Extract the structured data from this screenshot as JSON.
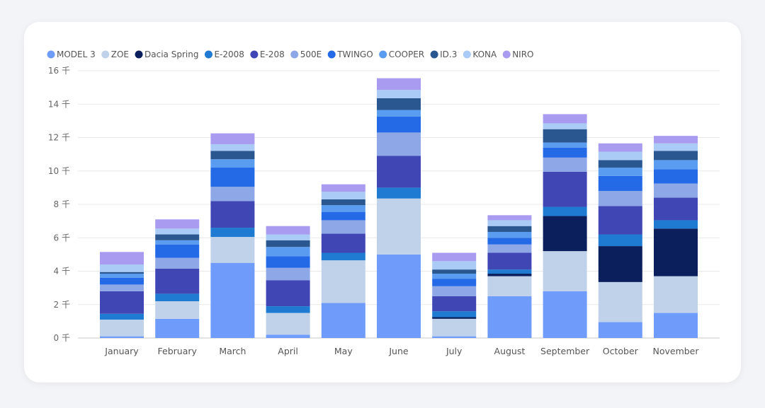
{
  "chart_data": {
    "type": "bar",
    "stacked": true,
    "categories": [
      "January",
      "February",
      "March",
      "April",
      "May",
      "June",
      "July",
      "August",
      "September",
      "October",
      "November"
    ],
    "y_unit": "千",
    "y_ticks": [
      0,
      2,
      4,
      6,
      8,
      10,
      12,
      14,
      16
    ],
    "ylim": [
      0,
      16
    ],
    "grid": true,
    "legend_position": "top-left",
    "series": [
      {
        "name": "MODEL 3",
        "color": "#6f9bfb",
        "values": [
          0.1,
          1.15,
          4.5,
          0.2,
          2.1,
          5.0,
          0.1,
          2.5,
          2.8,
          0.95,
          1.5
        ]
      },
      {
        "name": "ZOE",
        "color": "#bfd2ea",
        "values": [
          1.0,
          1.05,
          1.55,
          1.3,
          2.55,
          3.35,
          1.05,
          1.2,
          2.4,
          2.4,
          2.2
        ]
      },
      {
        "name": "Dacia Spring",
        "color": "#0a1f5c",
        "values": [
          0.0,
          0.0,
          0.0,
          0.0,
          0.0,
          0.0,
          0.1,
          0.15,
          2.1,
          2.15,
          2.85
        ]
      },
      {
        "name": "E-2008",
        "color": "#1f7ad1",
        "values": [
          0.35,
          0.45,
          0.55,
          0.4,
          0.45,
          0.65,
          0.35,
          0.25,
          0.55,
          0.7,
          0.5
        ]
      },
      {
        "name": "E-208",
        "color": "#4146b5",
        "values": [
          1.35,
          1.5,
          1.6,
          1.55,
          1.15,
          1.9,
          0.9,
          1.0,
          2.1,
          1.7,
          1.35
        ]
      },
      {
        "name": "500E",
        "color": "#8ea7e6",
        "values": [
          0.4,
          0.65,
          0.85,
          0.75,
          0.8,
          1.4,
          0.6,
          0.5,
          0.85,
          0.9,
          0.85
        ]
      },
      {
        "name": "TWINGO",
        "color": "#2469e6",
        "values": [
          0.4,
          0.8,
          1.15,
          0.7,
          0.5,
          0.95,
          0.45,
          0.4,
          0.6,
          0.9,
          0.85
        ]
      },
      {
        "name": "COOPER",
        "color": "#5a9cf0",
        "values": [
          0.25,
          0.25,
          0.5,
          0.55,
          0.4,
          0.4,
          0.3,
          0.35,
          0.3,
          0.5,
          0.55
        ]
      },
      {
        "name": "ID.3",
        "color": "#2b5791",
        "values": [
          0.1,
          0.35,
          0.5,
          0.4,
          0.35,
          0.7,
          0.25,
          0.35,
          0.8,
          0.45,
          0.55
        ]
      },
      {
        "name": "KONA",
        "color": "#a9cbf5",
        "values": [
          0.45,
          0.35,
          0.4,
          0.35,
          0.45,
          0.5,
          0.5,
          0.35,
          0.35,
          0.5,
          0.45
        ]
      },
      {
        "name": "NIRO",
        "color": "#a89bf0",
        "values": [
          0.75,
          0.55,
          0.65,
          0.5,
          0.45,
          0.7,
          0.5,
          0.3,
          0.55,
          0.5,
          0.45
        ]
      }
    ]
  }
}
